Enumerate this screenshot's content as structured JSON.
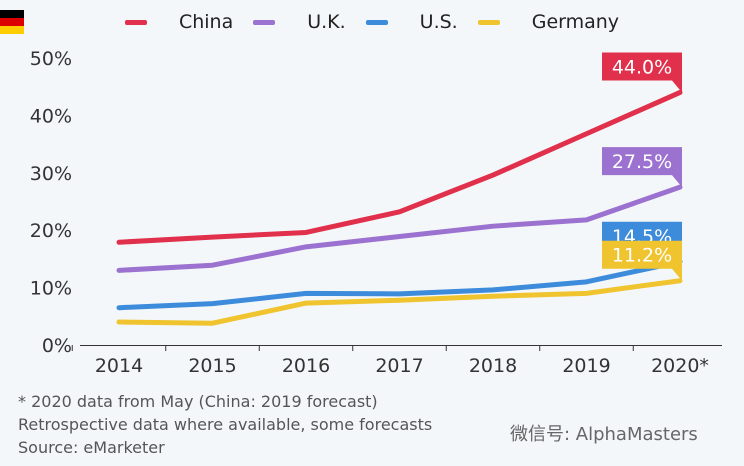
{
  "chart_data": {
    "type": "line",
    "categories": [
      "2014",
      "2015",
      "2016",
      "2017",
      "2018",
      "2019",
      "2020*"
    ],
    "ylim": [
      0,
      50
    ],
    "yticks": [
      "0%",
      "10%",
      "20%",
      "30%",
      "40%",
      "50%"
    ],
    "grid": false,
    "legend_position": "top",
    "series": [
      {
        "name": "China",
        "color": "#e0304b",
        "values": [
          17.9,
          18.8,
          19.6,
          23.2,
          29.6,
          36.8,
          44.0
        ],
        "end_label": "44.0%",
        "flag": "china-flag"
      },
      {
        "name": "U.K.",
        "color": "#9b72cf",
        "values": [
          13.0,
          13.9,
          17.1,
          18.9,
          20.7,
          21.8,
          27.5
        ],
        "end_label": "27.5%",
        "flag": "uk-flag"
      },
      {
        "name": "U.S.",
        "color": "#3d8cdb",
        "values": [
          6.5,
          7.2,
          9.0,
          8.9,
          9.6,
          11.0,
          14.5
        ],
        "end_label": "14.5%",
        "flag": "us-flag"
      },
      {
        "name": "Germany",
        "color": "#efc42f",
        "values": [
          4.0,
          3.8,
          7.3,
          7.8,
          8.5,
          9.0,
          11.2
        ],
        "end_label": "11.2%",
        "flag": "germany-flag"
      }
    ]
  },
  "notes": {
    "footnote": "* 2020 data from May (China: 2019 forecast)",
    "retrospective": "Retrospective data where available, some forecasts",
    "source": "Source: eMarketer",
    "watermark": "微信号: AlphaMasters"
  }
}
